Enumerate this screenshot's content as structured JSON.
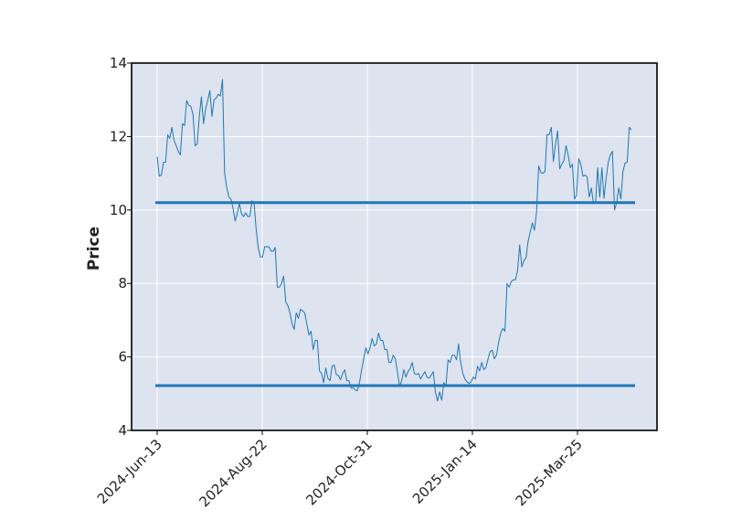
{
  "chart_data": {
    "type": "line",
    "title": "",
    "xlabel": "",
    "ylabel": "Price",
    "ylim": [
      4,
      14
    ],
    "yticks": [
      4,
      6,
      8,
      10,
      12,
      14
    ],
    "xticks": [
      "2024-Jun-13",
      "2024-Aug-22",
      "2024-Oct-31",
      "2025-Jan-14",
      "2025-Mar-25"
    ],
    "grid": true,
    "legend": "none",
    "colors": {
      "series": "#1f77b4",
      "background": "#dde3ef",
      "grid": "#ffffff",
      "frame": "#000000"
    },
    "series": [
      {
        "values": [
          11.45,
          10.92,
          10.95,
          11.3,
          11.3,
          12.05,
          11.95,
          12.25,
          11.9,
          11.75,
          11.6,
          11.5,
          12.35,
          12.3,
          12.98,
          12.85,
          12.82,
          12.6,
          11.75,
          11.8,
          12.55,
          13.08,
          12.35,
          12.75,
          12.98,
          13.25,
          12.55,
          13.0,
          13.05,
          13.15,
          13.1,
          13.55,
          11.0,
          10.62,
          10.35,
          10.3,
          10.05,
          9.7,
          9.9,
          10.18,
          9.9,
          9.82,
          9.92,
          9.82,
          9.83,
          10.25,
          10.18,
          9.45,
          8.95,
          8.72,
          8.72,
          9.0,
          9.0,
          9.0,
          8.88,
          8.88,
          8.98,
          7.9,
          7.9,
          8.0,
          8.2,
          7.5,
          7.4,
          7.2,
          6.9,
          6.75,
          7.2,
          7.05,
          7.3,
          7.25,
          7.2,
          6.9,
          6.6,
          6.7,
          6.2,
          6.45,
          6.45,
          5.62,
          5.55,
          5.3,
          5.7,
          5.42,
          5.35,
          5.75,
          5.78,
          5.52,
          5.5,
          5.38,
          5.55,
          5.65,
          5.35,
          5.35,
          5.15,
          5.15,
          5.1,
          5.08,
          5.3,
          5.65,
          5.95,
          6.25,
          6.08,
          6.25,
          6.5,
          6.3,
          6.35,
          6.65,
          6.45,
          6.45,
          6.2,
          6.2,
          5.85,
          5.85,
          6.05,
          5.95,
          5.6,
          5.2,
          5.35,
          5.65,
          5.45,
          5.6,
          5.68,
          5.85,
          5.55,
          5.52,
          5.55,
          5.4,
          5.5,
          5.6,
          5.45,
          5.42,
          5.5,
          5.6,
          5.05,
          4.8,
          5.05,
          4.82,
          5.3,
          5.2,
          5.92,
          5.85,
          6.05,
          6.05,
          5.92,
          6.35,
          5.85,
          5.55,
          5.4,
          5.32,
          5.28,
          5.32,
          5.45,
          5.4,
          5.75,
          5.62,
          5.85,
          5.65,
          5.72,
          5.95,
          6.15,
          6.18,
          5.95,
          6.05,
          6.4,
          6.65,
          6.78,
          6.7,
          8.0,
          7.9,
          8.05,
          8.1,
          8.1,
          8.35,
          9.05,
          8.45,
          8.62,
          8.7,
          9.15,
          9.4,
          9.65,
          9.45,
          9.95,
          11.2,
          11.02,
          11.0,
          11.05,
          12.05,
          12.05,
          12.25,
          11.32,
          11.8,
          12.15,
          11.12,
          11.25,
          11.35,
          11.75,
          11.5,
          11.15,
          11.25,
          10.3,
          10.4,
          11.4,
          11.25,
          10.92,
          10.95,
          10.9,
          10.35,
          10.6,
          10.18,
          10.2,
          11.15,
          10.35,
          11.15,
          10.32,
          10.85,
          11.3,
          11.5,
          11.6,
          10.0,
          10.2,
          10.6,
          10.3,
          11.05,
          11.28,
          11.3,
          12.25,
          12.18
        ]
      }
    ],
    "hlines": [
      {
        "name": "",
        "value": 10.2
      },
      {
        "name": "",
        "value": 5.22
      }
    ]
  }
}
